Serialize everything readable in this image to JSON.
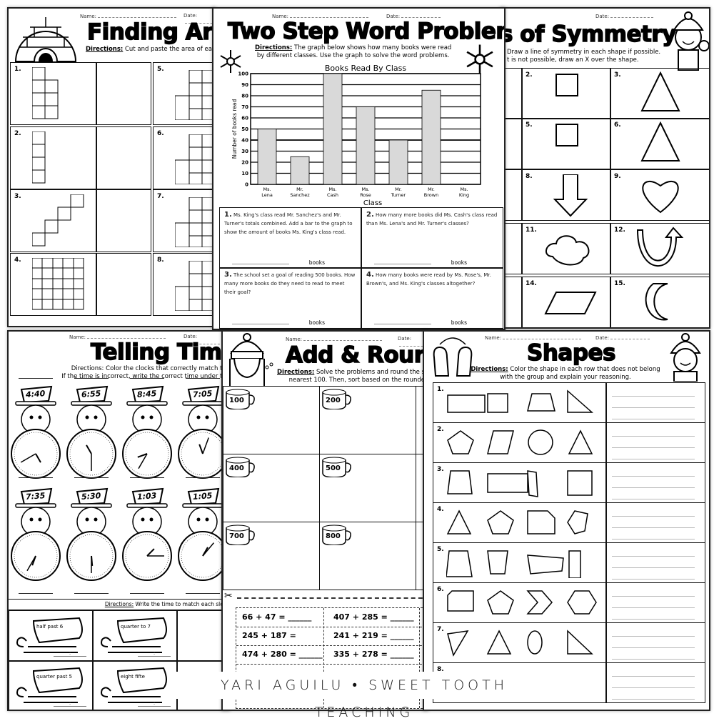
{
  "name_label": "Name:",
  "date_label": "Date:",
  "finding_area": {
    "title": "Finding Are",
    "directions_label": "Directions:",
    "directions": " Cut and paste the area of eacl",
    "numbers": [
      "1.",
      "2.",
      "3.",
      "4.",
      "5.",
      "6.",
      "7.",
      "8."
    ]
  },
  "two_step": {
    "title": "Two Step Word Problems",
    "directions_label": "Directions:",
    "directions_1": " The graph below shows how many books were read",
    "directions_2": "by different classes. Use the graph to solve the word problems.",
    "problems": [
      {
        "num": "1.",
        "text": " Ms. King's class read Mr. Sanchez's and Mr. Turner's totals combined. Add a bar to the graph to show the amount of books Ms. King's class read.",
        "unit": "books"
      },
      {
        "num": "2.",
        "text": " How many more books did Ms. Cash's class read than Ms. Lena's and Mr. Turner's classes?",
        "unit": "books"
      },
      {
        "num": "3.",
        "text": " The school set a goal of reading 500 books. How many more books do they need to read to meet their goal?",
        "unit": "books"
      },
      {
        "num": "4.",
        "text": " How many books were read by Ms. Rose's, Mr. Brown's, and Ms. King's classes altogether?",
        "unit": "books"
      }
    ]
  },
  "chart_data": {
    "type": "bar",
    "title": "Books Read By Class",
    "xlabel": "Class",
    "ylabel": "Number of books read",
    "ylim": [
      0,
      100
    ],
    "yticks": [
      0,
      10,
      20,
      30,
      40,
      50,
      60,
      70,
      80,
      90,
      100
    ],
    "grid": true,
    "categories": [
      [
        "Ms.",
        "Lena"
      ],
      [
        "Mr.",
        "Sanchez"
      ],
      [
        "Ms.",
        "Cash"
      ],
      [
        "Ms.",
        "Rose"
      ],
      [
        "Mr.",
        "Turner"
      ],
      [
        "Mr.",
        "Brown"
      ],
      [
        "Ms.",
        "King"
      ]
    ],
    "values": [
      50,
      25,
      100,
      70,
      40,
      85,
      null
    ],
    "bar_color": "#d9d9d9"
  },
  "symmetry": {
    "title": "s of Symmetry",
    "directions_1": " Draw a line of symmetry in each shape if possible.",
    "directions_2": "t is not possible, draw an X over the shape.",
    "numbers": [
      "2.",
      "3.",
      "5.",
      "6.",
      "8.",
      "9.",
      "11.",
      "12.",
      "14.",
      "15."
    ]
  },
  "telling_time": {
    "title": "Telling Time",
    "directions_1": "Directions: Color the clocks that correctly match the",
    "directions_2": "If the time is incorrect, write the correct time under the",
    "times": [
      "4:40",
      "6:55",
      "8:45",
      "7:05",
      "7:35",
      "5:30",
      "1:03",
      "1:05"
    ],
    "sled_directions_label": "Directions:",
    "sled_directions": " Write the time to match each sled.",
    "sleds": [
      "half past 6",
      "quarter to 7",
      "quarter past 5",
      "eight fifte"
    ]
  },
  "add_round": {
    "title": "Add & Rour",
    "directions_label": "Directions:",
    "directions_1": " Solve the problems and round the su",
    "directions_2": "nearest 100. Then, sort based on the rounded",
    "mugs": [
      "100",
      "200",
      "400",
      "500",
      "700",
      "800"
    ],
    "equations": [
      "66 + 47 = ______",
      "407 + 285 = ______",
      "245 + 187 =",
      "241 + 219 = ______",
      "474 + 280 = ______",
      "335 + 278 = ______"
    ]
  },
  "shapes": {
    "title": "Shapes",
    "directions_label": "Directions:",
    "directions_1": " Color the shape in each row that does not belong",
    "directions_2": "with the group and explain your reasoning.",
    "rows": [
      "1.",
      "2.",
      "3.",
      "4.",
      "5.",
      "6.",
      "7.",
      "8."
    ]
  },
  "banner": "YARI AGUILU • SWEET TOOTH TEACHING"
}
